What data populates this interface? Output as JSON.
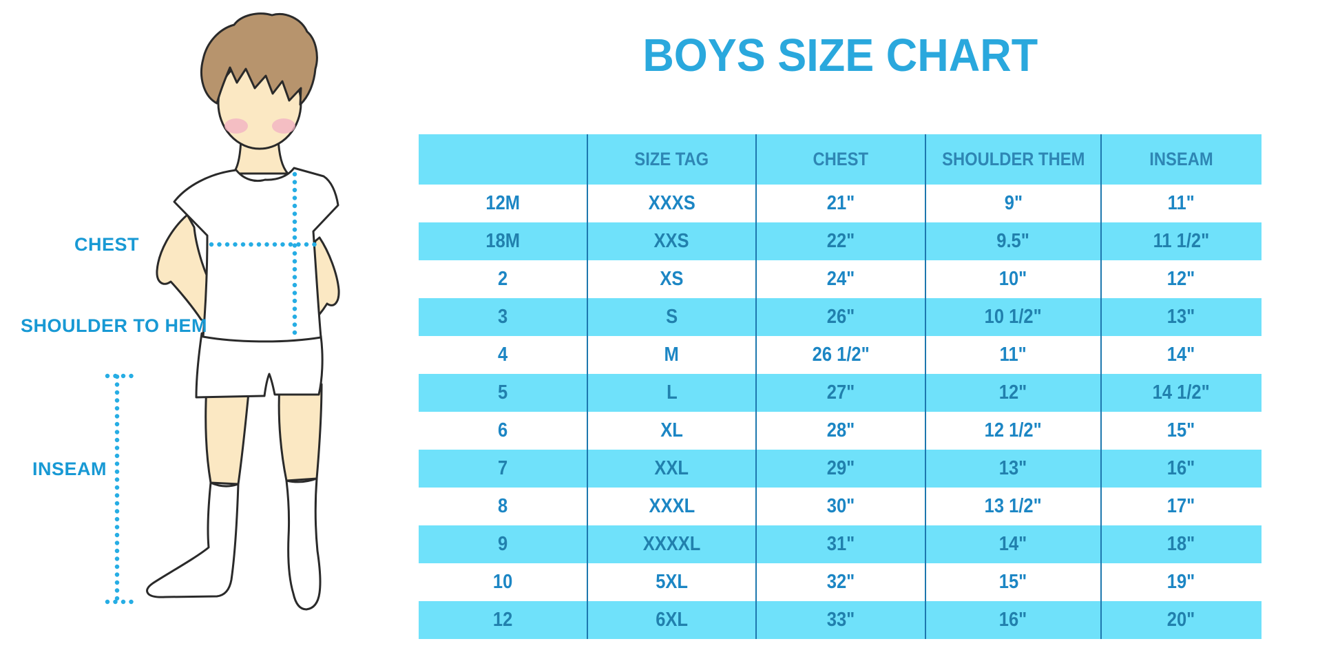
{
  "title": "BOYS SIZE CHART",
  "colors": {
    "stripe": "#6fe1fa",
    "title": "#2aa8dd",
    "header-text": "#2e86b4",
    "cell-text": "#1c86c4",
    "cell-text-blue": "#2180ad",
    "line": "#1d77ae",
    "label": "#1899d4",
    "dots": "#26ade4",
    "skin": "#fbe8c3",
    "hair": "#b7946d",
    "cheek": "#f2b3c3",
    "outline": "#2a2a2a"
  },
  "diagram": {
    "labels": {
      "chest": "CHEST",
      "shoulder_to_hem": "SHOULDER TO HEM",
      "inseam": "INSEAM"
    }
  },
  "chart_data": {
    "type": "table",
    "title": "BOYS SIZE CHART",
    "columns": [
      "",
      "SIZE TAG",
      "CHEST",
      "SHOULDER THEM",
      "INSEAM"
    ],
    "rows": [
      [
        "12M",
        "XXXS",
        "21\"",
        "9\"",
        "11\""
      ],
      [
        "18M",
        "XXS",
        "22\"",
        "9.5\"",
        "11 1/2\""
      ],
      [
        "2",
        "XS",
        "24\"",
        "10\"",
        "12\""
      ],
      [
        "3",
        "S",
        "26\"",
        "10 1/2\"",
        "13\""
      ],
      [
        "4",
        "M",
        "26 1/2\"",
        "11\"",
        "14\""
      ],
      [
        "5",
        "L",
        "27\"",
        "12\"",
        "14 1/2\""
      ],
      [
        "6",
        "XL",
        "28\"",
        "12 1/2\"",
        "15\""
      ],
      [
        "7",
        "XXL",
        "29\"",
        "13\"",
        "16\""
      ],
      [
        "8",
        "XXXL",
        "30\"",
        "13 1/2\"",
        "17\""
      ],
      [
        "9",
        "XXXXL",
        "31\"",
        "14\"",
        "18\""
      ],
      [
        "10",
        "5XL",
        "32\"",
        "15\"",
        "19\""
      ],
      [
        "12",
        "6XL",
        "33\"",
        "16\"",
        "20\""
      ]
    ],
    "layout": {
      "row_striping": [
        "white",
        "blue"
      ],
      "grid": "vertical-separators-only",
      "legend": "none"
    }
  }
}
